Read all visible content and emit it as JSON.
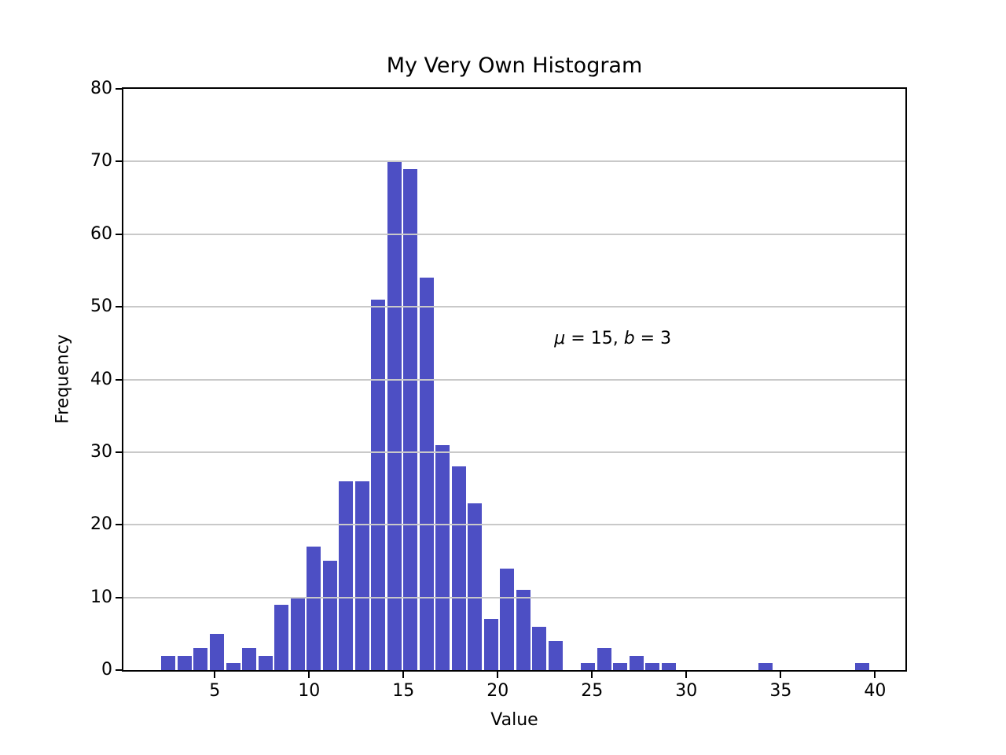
{
  "chart_data": {
    "type": "bar",
    "subtype": "histogram",
    "title": "My Very Own Histogram",
    "xlabel": "Value",
    "ylabel": "Frequency",
    "xlim": [
      0.154,
      41.61
    ],
    "ylim": [
      0,
      80
    ],
    "xticks": [
      5,
      10,
      15,
      20,
      25,
      30,
      35,
      40
    ],
    "yticks": [
      0,
      10,
      20,
      30,
      40,
      50,
      60,
      70,
      80
    ],
    "grid": "y-only, drawn above bars",
    "legend": "none",
    "bin_start": 2.12,
    "bin_width": 0.855,
    "counts": [
      2,
      2,
      3,
      5,
      1,
      3,
      2,
      9,
      10,
      17,
      15,
      26,
      26,
      51,
      70,
      69,
      54,
      31,
      28,
      23,
      7,
      14,
      11,
      6,
      4,
      0,
      1,
      3,
      1,
      2,
      1,
      1,
      0,
      0,
      0,
      0,
      0,
      1,
      0,
      0,
      0,
      0,
      0,
      1
    ],
    "total_samples": 500,
    "bar_color": "#4d4fc4",
    "grid_color": "#c9c9c9",
    "spine_color": "#000000",
    "annotation": {
      "text": "μ = 15, b = 3",
      "parts": [
        {
          "t": "μ",
          "italic": true
        },
        {
          "t": " = 15, ",
          "italic": false
        },
        {
          "t": "b",
          "italic": true
        },
        {
          "t": " = 3",
          "italic": false
        }
      ],
      "x": 23,
      "y": 45
    }
  }
}
